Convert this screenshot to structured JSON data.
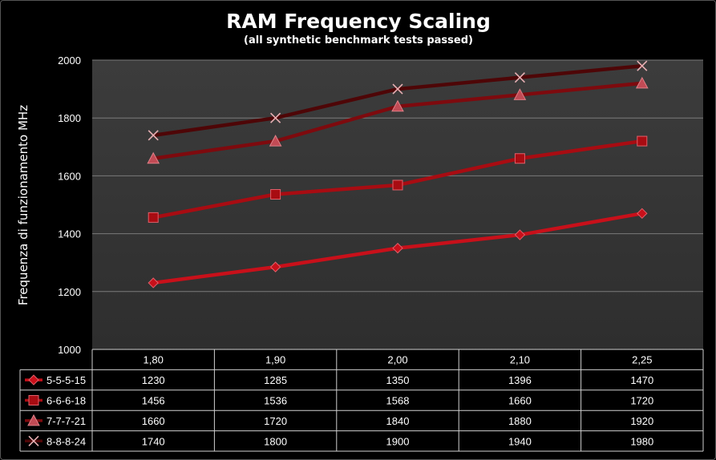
{
  "chart_data": {
    "type": "line",
    "title": "RAM Frequency Scaling",
    "subtitle": "(all synthetic benchmark tests passed)",
    "ylabel": "Frequenza di  funzionamento  MHz",
    "xlabel": "",
    "ylim": [
      1000,
      2000
    ],
    "yticks": [
      1000,
      1200,
      1400,
      1600,
      1800,
      2000
    ],
    "grid": true,
    "categories": [
      "1,80",
      "1,90",
      "2,00",
      "2,10",
      "2,25"
    ],
    "series": [
      {
        "name": "5-5-5-15",
        "marker": "diamond",
        "color": "#c8101a",
        "values": [
          1230,
          1285,
          1350,
          1396,
          1470
        ]
      },
      {
        "name": "6-6-6-18",
        "marker": "square",
        "color": "#a80c12",
        "values": [
          1456,
          1536,
          1568,
          1660,
          1720
        ]
      },
      {
        "name": "7-7-7-21",
        "marker": "triangle",
        "color": "#7e0a0e",
        "values": [
          1660,
          1720,
          1840,
          1880,
          1920
        ]
      },
      {
        "name": "8-8-8-24",
        "marker": "x",
        "color": "#4e0607",
        "values": [
          1740,
          1800,
          1900,
          1940,
          1980
        ]
      }
    ]
  }
}
